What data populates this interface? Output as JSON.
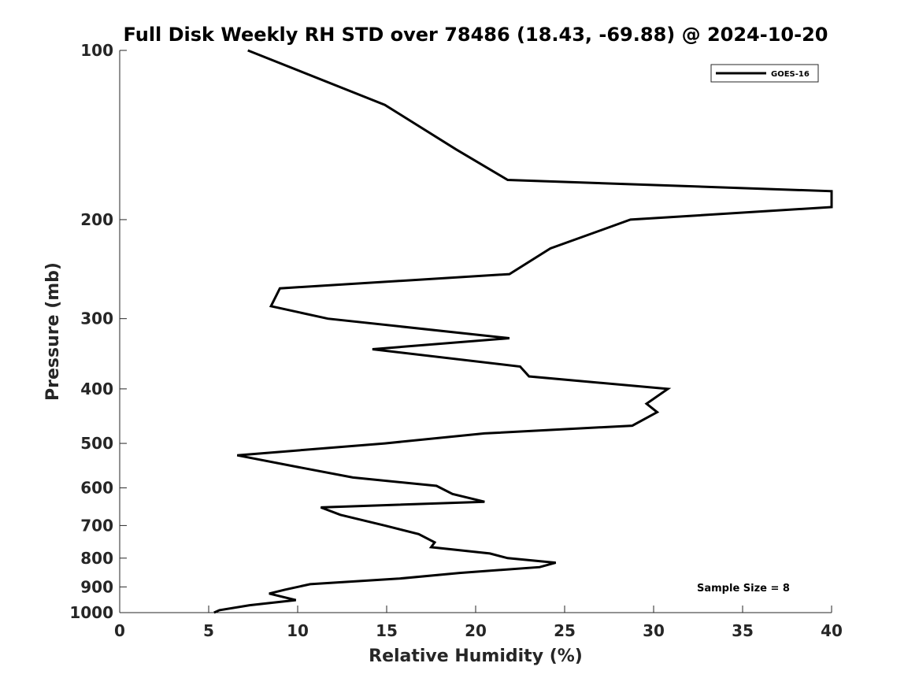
{
  "chart_data": {
    "type": "line",
    "title": "Full Disk Weekly RH STD over 78486 (18.43, -69.88) @ 2024-10-20",
    "xlabel": "Relative Humidity (%)",
    "ylabel": "Pressure (mb)",
    "xlim": [
      0,
      40
    ],
    "ylim": [
      100,
      1000
    ],
    "y_scale": "log",
    "y_reversed": true,
    "x_ticks": [
      0,
      5,
      10,
      15,
      20,
      25,
      30,
      35,
      40
    ],
    "y_ticks": [
      100,
      200,
      300,
      400,
      500,
      600,
      700,
      800,
      900,
      1000
    ],
    "grid": false,
    "legend_position": "top-right",
    "annotation": "Sample Size = 8",
    "series": [
      {
        "name": "GOES-16",
        "color": "#000000",
        "points": [
          [
            7.2,
            100
          ],
          [
            14.9,
            125
          ],
          [
            18.9,
            150
          ],
          [
            21.8,
            170
          ],
          [
            40.0,
            178
          ],
          [
            40.0,
            190
          ],
          [
            28.7,
            200
          ],
          [
            24.2,
            225
          ],
          [
            21.9,
            250
          ],
          [
            9.0,
            265
          ],
          [
            8.5,
            285
          ],
          [
            11.7,
            300
          ],
          [
            21.9,
            325
          ],
          [
            14.2,
            340
          ],
          [
            22.5,
            365
          ],
          [
            23.0,
            380
          ],
          [
            30.8,
            400
          ],
          [
            29.6,
            425
          ],
          [
            30.2,
            440
          ],
          [
            28.8,
            465
          ],
          [
            20.5,
            480
          ],
          [
            14.9,
            500
          ],
          [
            6.6,
            525
          ],
          [
            9.9,
            550
          ],
          [
            13.1,
            575
          ],
          [
            17.8,
            595
          ],
          [
            18.7,
            615
          ],
          [
            20.5,
            635
          ],
          [
            11.3,
            650
          ],
          [
            12.4,
            670
          ],
          [
            14.9,
            700
          ],
          [
            16.8,
            725
          ],
          [
            17.7,
            750
          ],
          [
            17.5,
            765
          ],
          [
            20.8,
            785
          ],
          [
            21.8,
            800
          ],
          [
            24.5,
            815
          ],
          [
            23.6,
            830
          ],
          [
            19.1,
            850
          ],
          [
            15.7,
            870
          ],
          [
            10.7,
            890
          ],
          [
            9.3,
            910
          ],
          [
            8.4,
            925
          ],
          [
            9.9,
            950
          ],
          [
            7.3,
            970
          ],
          [
            5.6,
            990
          ],
          [
            5.3,
            1000
          ]
        ]
      }
    ]
  }
}
